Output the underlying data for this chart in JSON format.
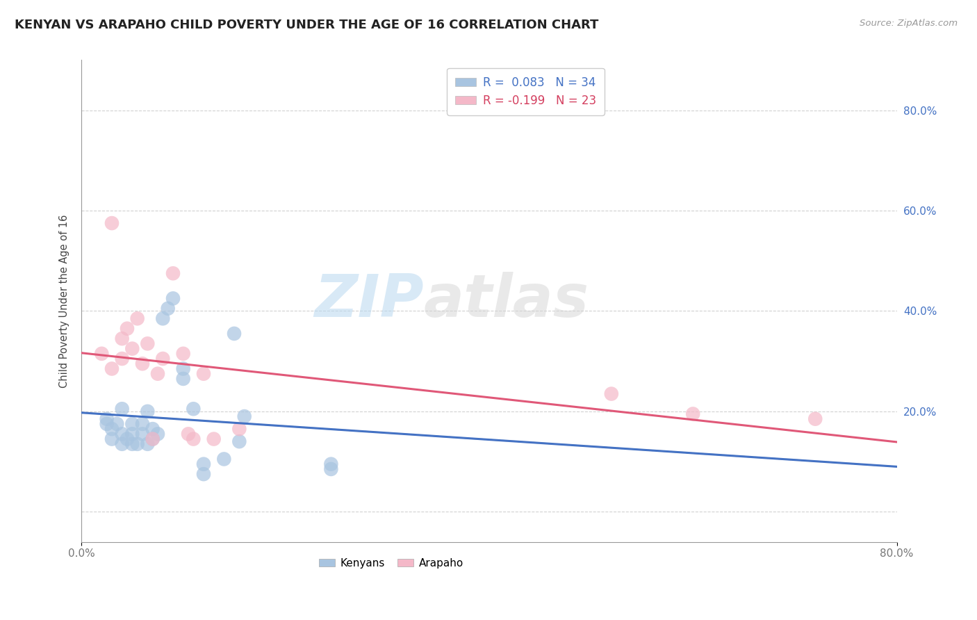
{
  "title": "KENYAN VS ARAPAHO CHILD POVERTY UNDER THE AGE OF 16 CORRELATION CHART",
  "source": "Source: ZipAtlas.com",
  "ylabel": "Child Poverty Under the Age of 16",
  "xlim": [
    0.0,
    0.8
  ],
  "ylim": [
    -0.06,
    0.9
  ],
  "ytick_vals": [
    0.0,
    0.2,
    0.4,
    0.6,
    0.8
  ],
  "ytick_labels": [
    "",
    "20.0%",
    "40.0%",
    "60.0%",
    "80.0%"
  ],
  "xtick_vals": [
    0.0,
    0.8
  ],
  "xtick_labels": [
    "0.0%",
    "80.0%"
  ],
  "legend_r_entries": [
    {
      "label": "R =  0.083   N = 34",
      "color": "#4472c4",
      "patch_color": "#a8c4e0"
    },
    {
      "label": "R = -0.199   N = 23",
      "color": "#d44060",
      "patch_color": "#f4b8c8"
    }
  ],
  "bottom_legend": [
    {
      "label": "Kenyans",
      "color": "#a8c4e0"
    },
    {
      "label": "Arapaho",
      "color": "#f4b8c8"
    }
  ],
  "kenyan_x": [
    0.025,
    0.025,
    0.03,
    0.03,
    0.035,
    0.04,
    0.04,
    0.04,
    0.045,
    0.05,
    0.05,
    0.05,
    0.055,
    0.06,
    0.06,
    0.065,
    0.065,
    0.07,
    0.07,
    0.075,
    0.08,
    0.085,
    0.09,
    0.1,
    0.1,
    0.11,
    0.12,
    0.12,
    0.14,
    0.15,
    0.155,
    0.16,
    0.245,
    0.245
  ],
  "kenyan_y": [
    0.175,
    0.185,
    0.145,
    0.165,
    0.175,
    0.135,
    0.155,
    0.205,
    0.145,
    0.135,
    0.155,
    0.175,
    0.135,
    0.155,
    0.175,
    0.135,
    0.2,
    0.145,
    0.165,
    0.155,
    0.385,
    0.405,
    0.425,
    0.265,
    0.285,
    0.205,
    0.075,
    0.095,
    0.105,
    0.355,
    0.14,
    0.19,
    0.085,
    0.095
  ],
  "kenyan_color": "#a8c4e0",
  "kenyan_line_color": "#4472c4",
  "arapaho_x": [
    0.02,
    0.03,
    0.03,
    0.04,
    0.04,
    0.045,
    0.05,
    0.055,
    0.06,
    0.065,
    0.07,
    0.075,
    0.08,
    0.09,
    0.1,
    0.105,
    0.11,
    0.12,
    0.13,
    0.155,
    0.52,
    0.6,
    0.72
  ],
  "arapaho_y": [
    0.315,
    0.285,
    0.575,
    0.305,
    0.345,
    0.365,
    0.325,
    0.385,
    0.295,
    0.335,
    0.145,
    0.275,
    0.305,
    0.475,
    0.315,
    0.155,
    0.145,
    0.275,
    0.145,
    0.165,
    0.235,
    0.195,
    0.185
  ],
  "arapaho_color": "#f4b8c8",
  "arapaho_line_color": "#e05878",
  "watermark_zip": "ZIP",
  "watermark_atlas": "atlas",
  "bg_color": "#ffffff",
  "grid_color": "#cccccc",
  "title_fontsize": 13,
  "tick_color_right": "#4472c4",
  "tick_color_bottom": "#777777"
}
